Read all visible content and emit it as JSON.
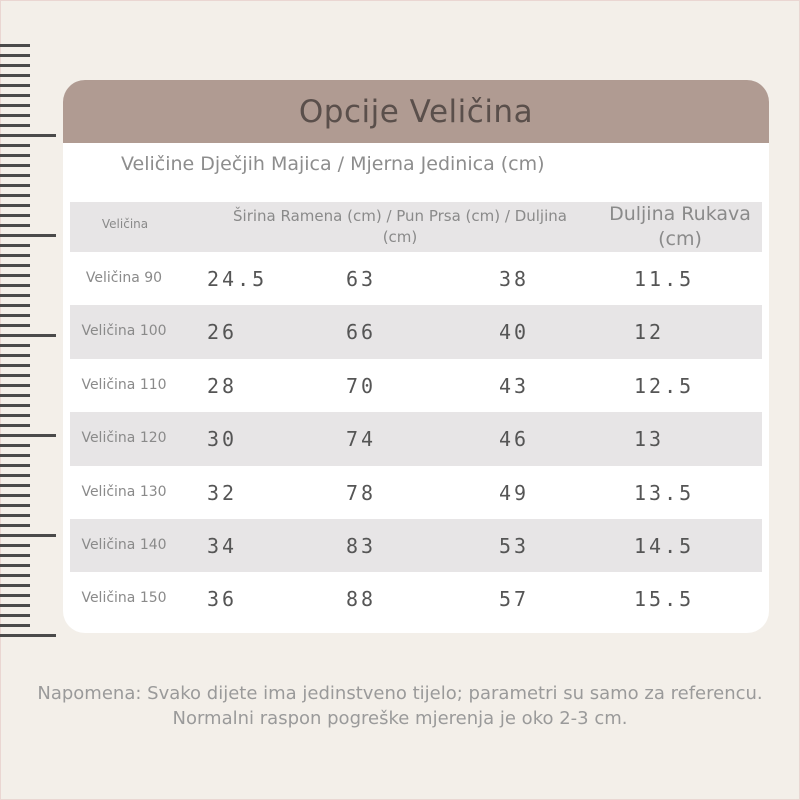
{
  "title": "Opcije Veličina",
  "subtitle": "Veličine Dječjih Majica / Mjerna Jedinica (cm)",
  "table": {
    "headers": {
      "size": "Veličina",
      "measurements": "Širina Ramena (cm) / Pun Prsa (cm) / Duljina (cm)",
      "sleeve": "Duljina Rukava (cm)"
    },
    "rows": [
      {
        "size": "Veličina 90",
        "shoulder": "24.5",
        "chest": "63",
        "length": "38",
        "sleeve": "11.5"
      },
      {
        "size": "Veličina 100",
        "shoulder": "26",
        "chest": "66",
        "length": "40",
        "sleeve": "12"
      },
      {
        "size": "Veličina 110",
        "shoulder": "28",
        "chest": "70",
        "length": "43",
        "sleeve": "12.5"
      },
      {
        "size": "Veličina 120",
        "shoulder": "30",
        "chest": "74",
        "length": "46",
        "sleeve": "13"
      },
      {
        "size": "Veličina 130",
        "shoulder": "32",
        "chest": "78",
        "length": "49",
        "sleeve": "13.5"
      },
      {
        "size": "Veličina 140",
        "shoulder": "34",
        "chest": "83",
        "length": "53",
        "sleeve": "14.5"
      },
      {
        "size": "Veličina 150",
        "shoulder": "36",
        "chest": "88",
        "length": "57",
        "sleeve": "15.5"
      }
    ]
  },
  "note": "Napomena: Svako dijete ima jedinstveno tijelo; parametri su samo za referencu. Normalni raspon pogreške mjerenja je oko 2-3 cm.",
  "colors": {
    "background": "#f3efe9",
    "header": "#b09b92",
    "row_alt": "#e7e5e6",
    "ruler": "#4a4a4a"
  }
}
